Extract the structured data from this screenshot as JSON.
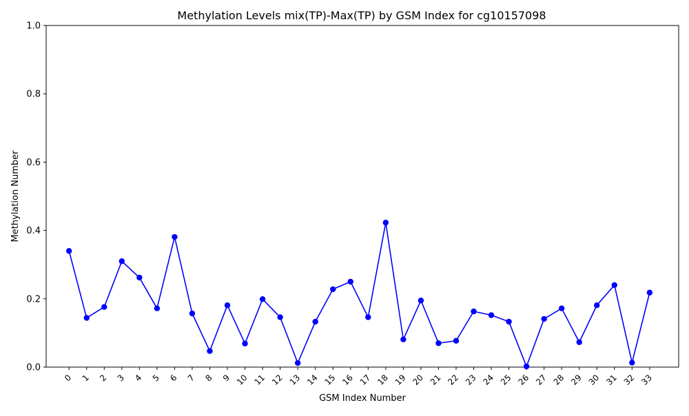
{
  "chart_data": {
    "type": "line",
    "title": "Methylation Levels mix(TP)-Max(TP) by GSM Index for cg10157098",
    "xlabel": "GSM Index Number",
    "ylabel": "Methylation Number",
    "ylim": [
      0,
      1
    ],
    "yticks": [
      "0.0",
      "0.2",
      "0.4",
      "0.6",
      "0.8",
      "1.0"
    ],
    "grid": false,
    "legend": "none",
    "x": [
      0,
      1,
      2,
      3,
      4,
      5,
      6,
      7,
      8,
      9,
      10,
      11,
      12,
      13,
      14,
      15,
      16,
      17,
      18,
      19,
      20,
      21,
      22,
      23,
      24,
      25,
      26,
      27,
      28,
      29,
      30,
      31,
      32,
      33
    ],
    "series": [
      {
        "color": "#0000ff",
        "marker": "circle",
        "values": [
          0.34,
          0.144,
          0.176,
          0.31,
          0.262,
          0.172,
          0.381,
          0.157,
          0.047,
          0.181,
          0.069,
          0.199,
          0.146,
          0.012,
          0.133,
          0.228,
          0.25,
          0.146,
          0.423,
          0.081,
          0.195,
          0.07,
          0.077,
          0.163,
          0.152,
          0.133,
          0.002,
          0.141,
          0.172,
          0.073,
          0.181,
          0.24,
          0.013,
          0.218
        ]
      }
    ]
  }
}
